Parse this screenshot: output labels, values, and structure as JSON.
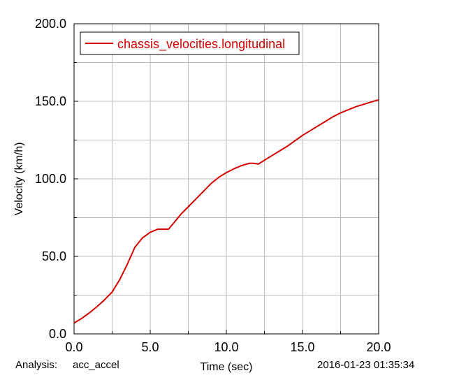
{
  "footer": {
    "analysis_label": "Analysis:",
    "analysis_name": "acc_accel",
    "timestamp": "2016-01-23 01:35:34"
  },
  "chart_data": {
    "type": "line",
    "title": "",
    "xlabel": "Time (sec)",
    "ylabel": "Velocity (km/h)",
    "xlim": [
      0,
      20
    ],
    "ylim": [
      0,
      200
    ],
    "xticks": [
      "0.0",
      "5.0",
      "10.0",
      "15.0",
      "20.0"
    ],
    "yticks": [
      "0.0",
      "50.0",
      "100.0",
      "150.0",
      "200.0"
    ],
    "grid": true,
    "legend_position": "top-left",
    "series": [
      {
        "name": "chassis_velocities.longitudinal",
        "color": "#d40000",
        "x": [
          0,
          0.5,
          1,
          1.5,
          2,
          2.5,
          3,
          3.5,
          4,
          4.5,
          5,
          5.5,
          5.8,
          6.2,
          6.5,
          7,
          7.5,
          8,
          8.5,
          9,
          9.5,
          10,
          10.5,
          11,
          11.5,
          11.8,
          12.1,
          12.5,
          13,
          13.5,
          14,
          14.5,
          15,
          15.5,
          16,
          16.5,
          17,
          17.5,
          18,
          18.5,
          19,
          19.5,
          20
        ],
        "y": [
          7,
          10,
          13.5,
          17.5,
          22,
          27,
          35,
          45,
          56,
          62,
          65.5,
          67.5,
          67.5,
          67.5,
          71,
          77,
          82,
          87,
          92,
          97,
          101,
          104,
          106.5,
          108.5,
          110,
          110,
          109.5,
          112,
          115,
          118,
          121,
          124.5,
          128,
          131,
          134,
          137,
          140,
          142.5,
          144.5,
          146.5,
          148,
          149.5,
          151
        ]
      }
    ]
  }
}
